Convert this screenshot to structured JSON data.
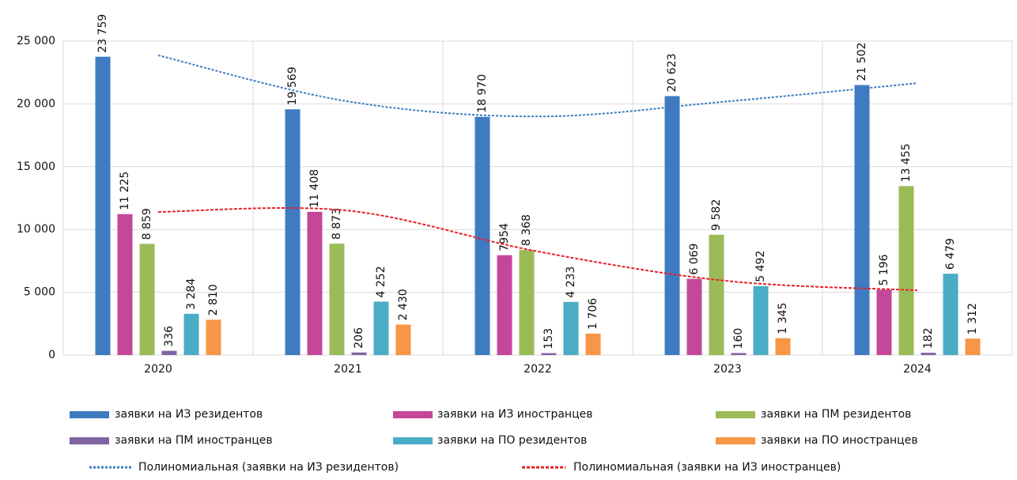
{
  "chart_data": {
    "type": "bar",
    "categories": [
      "2020",
      "2021",
      "2022",
      "2023",
      "2024"
    ],
    "ylim": [
      0,
      25000
    ],
    "yticks": [
      0,
      {
        "value": 5000,
        "label": "5 000"
      },
      {
        "value": 10000,
        "label": "10 000"
      },
      {
        "value": 15000,
        "label": "15 000"
      },
      {
        "value": 20000,
        "label": "20 000"
      },
      {
        "value": 25000,
        "label": "25 000"
      }
    ],
    "grid": true,
    "series": [
      {
        "name": "заявки на ИЗ резидентов",
        "color": "#3f7bc1",
        "values": [
          23759,
          19569,
          18970,
          20623,
          21502
        ],
        "value_labels": [
          "23 759",
          "19 569",
          "18 970",
          "20 623",
          "21 502"
        ]
      },
      {
        "name": "заявки на ИЗ иностранцев",
        "color": "#c4479a",
        "values": [
          11225,
          11408,
          7954,
          6069,
          5196
        ],
        "value_labels": [
          "11 225",
          "11 408",
          "7954",
          "6 069",
          "5 196"
        ]
      },
      {
        "name": "заявки на ПМ резидентов",
        "color": "#9bbb59",
        "values": [
          8859,
          8873,
          8368,
          9582,
          13455
        ],
        "value_labels": [
          "8 859",
          "8 873",
          "8 368",
          "9 582",
          "13 455"
        ]
      },
      {
        "name": "заявки на ПМ иностранцев",
        "color": "#8064a2",
        "values": [
          336,
          206,
          153,
          160,
          182
        ]
      },
      {
        "name": "заявки на ПО резидентов",
        "color": "#4bacc6",
        "values": [
          3284,
          4252,
          4233,
          5492,
          6479
        ],
        "value_labels": [
          "3 284",
          "4 252",
          "4 233",
          "5 492",
          "6 479"
        ]
      },
      {
        "name": "заявки на ПО иностранцев",
        "color": "#f79646",
        "values": [
          2810,
          2430,
          1706,
          1345,
          1312
        ],
        "value_labels": [
          "2 810",
          "2 430",
          "1 706",
          "1 345",
          "1 312"
        ]
      }
    ],
    "trendlines": [
      {
        "name": "Полиномиальная (заявки на ИЗ резидентов)",
        "color": "#3f7bc1",
        "dash": "3 2",
        "values": [
          23870,
          20200,
          19000,
          20200,
          21650
        ]
      },
      {
        "name": "Полиномиальная (заявки на ИЗ иностранцев)",
        "color": "#e8202a",
        "dash": "4 2",
        "values": [
          11400,
          11500,
          8250,
          5900,
          5160
        ]
      }
    ]
  }
}
